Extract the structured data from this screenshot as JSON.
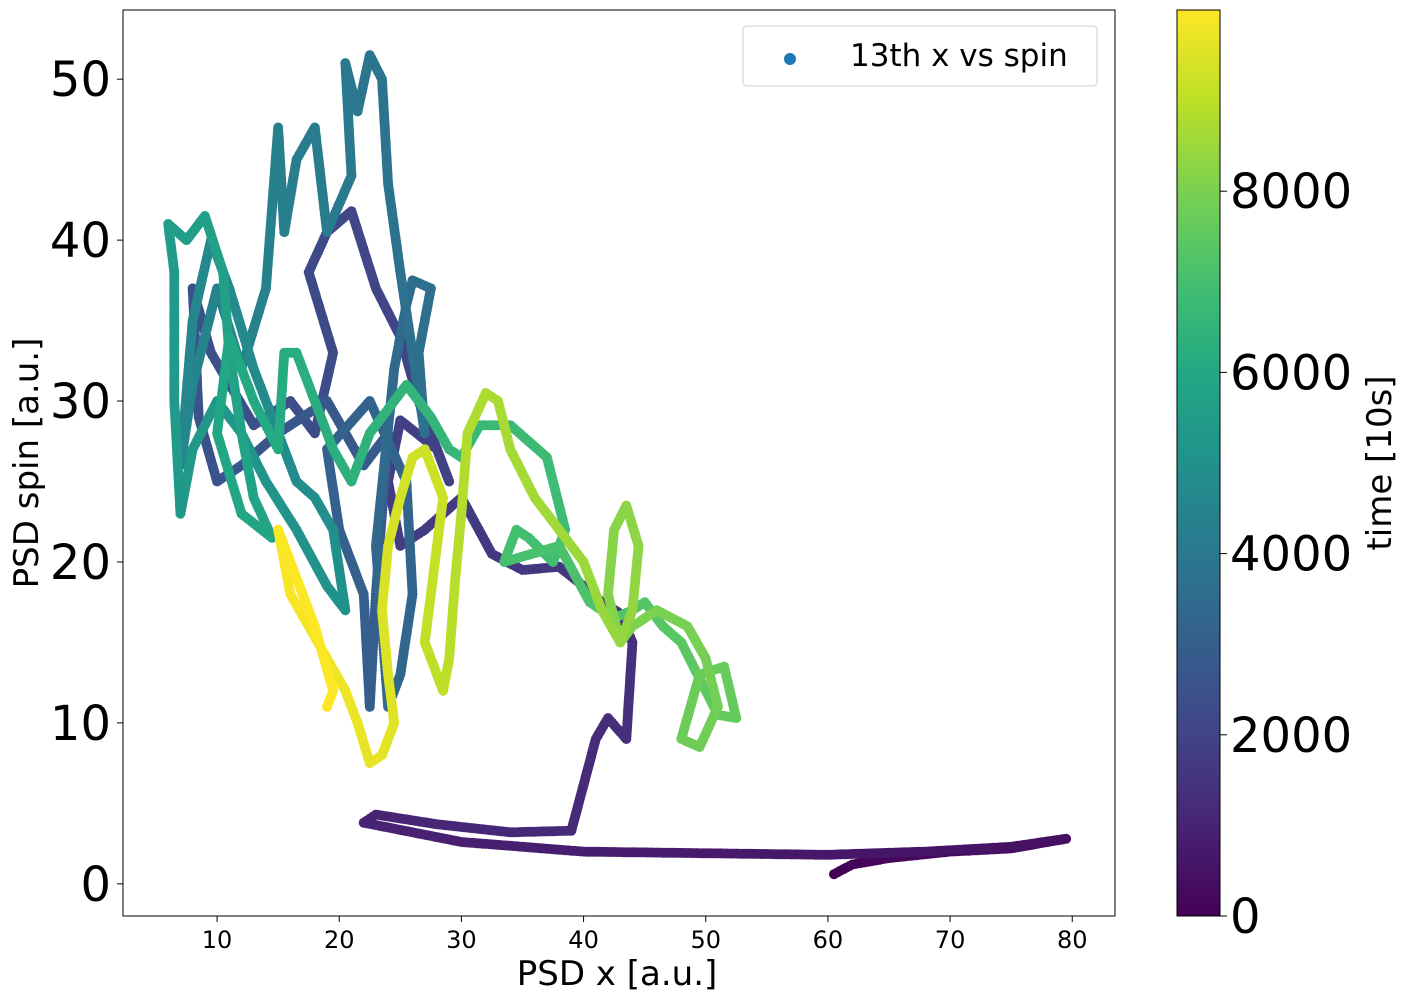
{
  "chart_data": {
    "type": "scatter",
    "xlabel": "PSD x [a.u.]",
    "ylabel": "PSD spin [a.u.]",
    "xlim": [
      2.3,
      83.5
    ],
    "ylim": [
      -2,
      54.3
    ],
    "x_ticks": [
      10,
      20,
      30,
      40,
      50,
      60,
      70,
      80
    ],
    "y_ticks": [
      0,
      10,
      20,
      30,
      40,
      50
    ],
    "grid": false,
    "legend": {
      "placement": "top-right",
      "entries": [
        {
          "label": "13th x vs spin",
          "marker_color": "#1f77b4"
        }
      ]
    },
    "colorbar": {
      "label": "time [10s]",
      "colormap": "viridis",
      "range": [
        0,
        10000
      ],
      "ticks": [
        0,
        2000,
        4000,
        6000,
        8000
      ]
    },
    "series": [
      {
        "name": "13th x vs spin",
        "color_by": "time [10s]",
        "points": [
          [
            60.5,
            0.6,
            0
          ],
          [
            62,
            1.2,
            80
          ],
          [
            65,
            1.6,
            160
          ],
          [
            70,
            2.0,
            240
          ],
          [
            75,
            2.2,
            320
          ],
          [
            79.5,
            2.8,
            400
          ],
          [
            75,
            2.3,
            480
          ],
          [
            68,
            2.0,
            560
          ],
          [
            60,
            1.8,
            640
          ],
          [
            50,
            1.9,
            720
          ],
          [
            40,
            2.0,
            800
          ],
          [
            30,
            2.6,
            880
          ],
          [
            22,
            3.8,
            960
          ],
          [
            23,
            4.3,
            1000
          ],
          [
            28,
            3.7,
            1060
          ],
          [
            34,
            3.2,
            1120
          ],
          [
            39,
            3.3,
            1180
          ],
          [
            41,
            9,
            1240
          ],
          [
            42,
            10.3,
            1290
          ],
          [
            43.5,
            9.0,
            1340
          ],
          [
            44,
            15,
            1400
          ],
          [
            43,
            16.8,
            1440
          ],
          [
            41.5,
            17.5,
            1480
          ],
          [
            40,
            18.5,
            1520
          ],
          [
            38,
            19.7,
            1560
          ],
          [
            35,
            19.5,
            1600
          ],
          [
            32.5,
            20.5,
            1640
          ],
          [
            30,
            24,
            1680
          ],
          [
            27,
            22,
            1720
          ],
          [
            25,
            21,
            1760
          ],
          [
            24,
            25,
            1800
          ],
          [
            25,
            28.8,
            1840
          ],
          [
            28,
            27,
            1880
          ],
          [
            29,
            25,
            1920
          ],
          [
            26.5,
            30,
            1960
          ],
          [
            25,
            34,
            2000
          ],
          [
            23,
            37,
            2040
          ],
          [
            21,
            41.8,
            2100
          ],
          [
            19,
            40.5,
            2150
          ],
          [
            17.5,
            38,
            2200
          ],
          [
            19.5,
            33,
            2250
          ],
          [
            18,
            28,
            2300
          ],
          [
            16,
            30,
            2350
          ],
          [
            13,
            28.5,
            2400
          ],
          [
            9.5,
            33,
            2450
          ],
          [
            8,
            37,
            2500
          ],
          [
            8.5,
            29,
            2550
          ],
          [
            10,
            25,
            2600
          ],
          [
            12,
            26,
            2650
          ],
          [
            15,
            28,
            2700
          ],
          [
            19,
            30,
            2750
          ],
          [
            22,
            26,
            2800
          ],
          [
            24,
            28,
            2850
          ],
          [
            23,
            18,
            2900
          ],
          [
            22.5,
            11,
            2950
          ],
          [
            22,
            18,
            3000
          ],
          [
            20,
            22,
            3050
          ],
          [
            19,
            27,
            3100
          ],
          [
            22.5,
            30,
            3150
          ],
          [
            25.5,
            25,
            3200
          ],
          [
            26,
            18,
            3250
          ],
          [
            25,
            13,
            3300
          ],
          [
            24,
            11,
            3350
          ],
          [
            23,
            21,
            3400
          ],
          [
            24.5,
            32,
            3450
          ],
          [
            25.5,
            36,
            3500
          ],
          [
            26,
            37.5,
            3550
          ],
          [
            27.5,
            37,
            3600
          ],
          [
            26.5,
            33,
            3650
          ],
          [
            27,
            28,
            3700
          ],
          [
            25,
            38,
            3750
          ],
          [
            24,
            43.5,
            3800
          ],
          [
            23.5,
            50,
            3850
          ],
          [
            22.5,
            51.5,
            3900
          ],
          [
            21.5,
            48,
            3950
          ],
          [
            20.5,
            51,
            4000
          ],
          [
            21,
            44,
            4050
          ],
          [
            19,
            40.5,
            4100
          ],
          [
            18,
            47,
            4150
          ],
          [
            16.5,
            45,
            4200
          ],
          [
            15.5,
            40.5,
            4250
          ],
          [
            15,
            47,
            4300
          ],
          [
            14,
            37,
            4350
          ],
          [
            12,
            32,
            4400
          ],
          [
            10,
            37,
            4450
          ],
          [
            8,
            31,
            4500
          ],
          [
            7,
            26,
            4550
          ],
          [
            8,
            35,
            4600
          ],
          [
            9.5,
            40,
            4650
          ],
          [
            11,
            37,
            4700
          ],
          [
            13,
            32,
            4750
          ],
          [
            15,
            28,
            4800
          ],
          [
            16.5,
            25,
            4850
          ],
          [
            18,
            24,
            4900
          ],
          [
            19.5,
            22,
            4950
          ],
          [
            20.5,
            17,
            5000
          ],
          [
            19,
            18.5,
            5050
          ],
          [
            16.5,
            22,
            5100
          ],
          [
            14,
            25,
            5150
          ],
          [
            12,
            28,
            5200
          ],
          [
            10,
            30,
            5250
          ],
          [
            8,
            27,
            5300
          ],
          [
            7,
            23,
            5350
          ],
          [
            6.5,
            30,
            5400
          ],
          [
            6.5,
            38,
            5450
          ],
          [
            6,
            41,
            5500
          ],
          [
            7.5,
            40,
            5550
          ],
          [
            9,
            41.5,
            5600
          ],
          [
            10.5,
            38,
            5650
          ],
          [
            11,
            33,
            5700
          ],
          [
            12,
            28,
            5750
          ],
          [
            13,
            24,
            5800
          ],
          [
            14.5,
            21.5,
            5850
          ],
          [
            12,
            23,
            5900
          ],
          [
            10,
            28,
            5950
          ],
          [
            11,
            34,
            6000
          ],
          [
            13,
            30,
            6050
          ],
          [
            15,
            27,
            6100
          ],
          [
            15.5,
            33,
            6150
          ],
          [
            16.5,
            33,
            6200
          ],
          [
            18,
            30,
            6250
          ],
          [
            19.5,
            27,
            6300
          ],
          [
            21,
            25,
            6350
          ],
          [
            22.5,
            28,
            6400
          ],
          [
            24,
            29.5,
            6450
          ],
          [
            25.5,
            31,
            6500
          ],
          [
            27.5,
            29,
            6550
          ],
          [
            29,
            27,
            6600
          ],
          [
            30,
            26.5,
            6650
          ],
          [
            31.5,
            28.5,
            6700
          ],
          [
            34,
            28.5,
            6750
          ],
          [
            37,
            26.5,
            6800
          ],
          [
            38.5,
            22,
            6850
          ],
          [
            37.5,
            20,
            6900
          ],
          [
            35.5,
            21.5,
            6950
          ],
          [
            34.5,
            22,
            7000
          ],
          [
            33.5,
            20,
            7050
          ],
          [
            38,
            21,
            7100
          ],
          [
            40.5,
            17.5,
            7150
          ],
          [
            42.5,
            16.5,
            7200
          ],
          [
            44,
            17,
            7250
          ],
          [
            45,
            17.5,
            7300
          ],
          [
            46.5,
            16,
            7350
          ],
          [
            48,
            15,
            7400
          ],
          [
            49,
            13.5,
            7450
          ],
          [
            50,
            12,
            7500
          ],
          [
            51,
            10.5,
            7550
          ],
          [
            52.5,
            10.3,
            7600
          ],
          [
            51.5,
            13.5,
            7650
          ],
          [
            49.5,
            13,
            7700
          ],
          [
            48,
            9,
            7750
          ],
          [
            49.5,
            8.5,
            7800
          ],
          [
            51,
            11,
            7850
          ],
          [
            50,
            14,
            7900
          ],
          [
            48.5,
            16,
            7950
          ],
          [
            46,
            17,
            8000
          ],
          [
            44,
            16,
            8050
          ],
          [
            43,
            15,
            8100
          ],
          [
            42,
            18,
            8150
          ],
          [
            42.5,
            22,
            8200
          ],
          [
            43.5,
            23.5,
            8250
          ],
          [
            44.5,
            21,
            8300
          ],
          [
            44,
            17,
            8350
          ],
          [
            43,
            15,
            8400
          ],
          [
            41.5,
            17,
            8450
          ],
          [
            40,
            20,
            8500
          ],
          [
            38,
            22,
            8550
          ],
          [
            36,
            24,
            8600
          ],
          [
            34,
            27,
            8650
          ],
          [
            33,
            30,
            8700
          ],
          [
            32,
            30.5,
            8750
          ],
          [
            30.5,
            28,
            8800
          ],
          [
            30,
            23,
            8850
          ],
          [
            29.5,
            19,
            8900
          ],
          [
            29,
            14,
            8950
          ],
          [
            28.5,
            12,
            9000
          ],
          [
            27,
            15,
            9050
          ],
          [
            27.5,
            18,
            9100
          ],
          [
            28,
            21,
            9150
          ],
          [
            28.5,
            24,
            9200
          ],
          [
            27,
            27,
            9250
          ],
          [
            26,
            26.5,
            9300
          ],
          [
            25,
            24,
            9350
          ],
          [
            24,
            21,
            9400
          ],
          [
            23.5,
            17,
            9450
          ],
          [
            24,
            13,
            9500
          ],
          [
            24.5,
            10,
            9550
          ],
          [
            23.5,
            8,
            9600
          ],
          [
            22.5,
            7.5,
            9650
          ],
          [
            21.5,
            10,
            9700
          ],
          [
            20.5,
            12,
            9750
          ],
          [
            19,
            14,
            9800
          ],
          [
            17.5,
            16,
            9850
          ],
          [
            16,
            18,
            9900
          ],
          [
            15,
            22,
            9950
          ],
          [
            16.5,
            19,
            9970
          ],
          [
            18,
            16,
            9985
          ],
          [
            19.5,
            12,
            9995
          ],
          [
            19,
            11,
            10000
          ]
        ]
      }
    ]
  }
}
